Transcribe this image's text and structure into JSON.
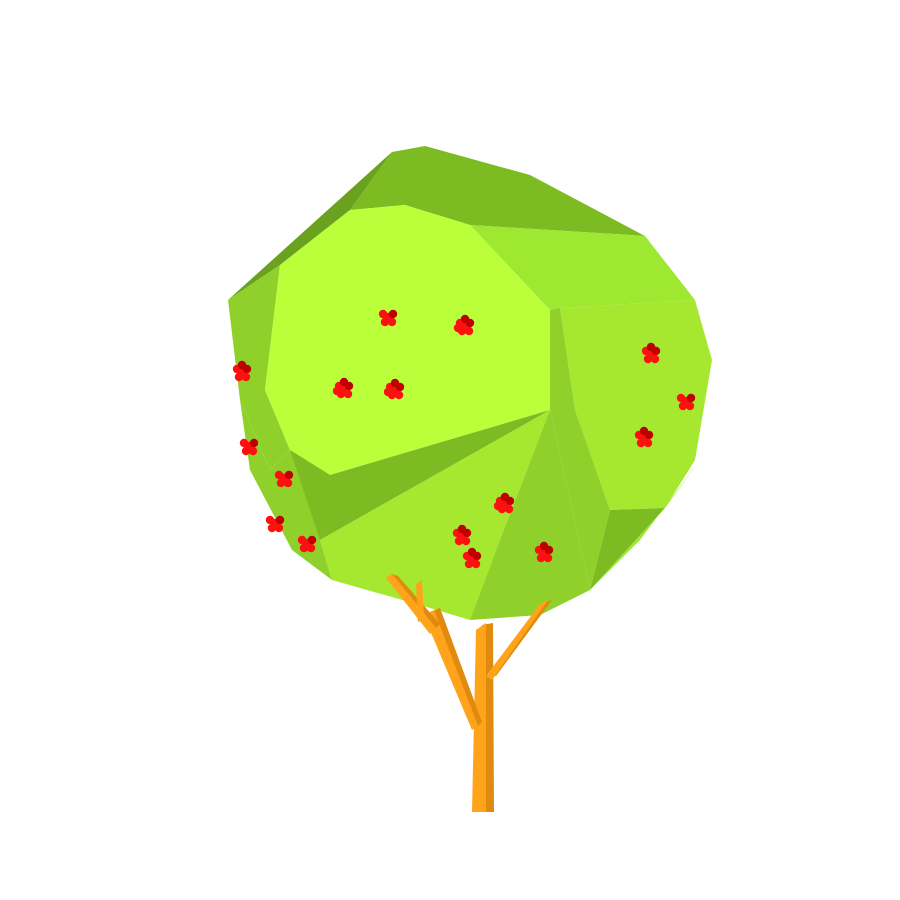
{
  "scene": {
    "subject": "tree-with-berries",
    "colors": {
      "background": "#ffffff",
      "leaf_dark": "#6aa11f",
      "leaf_mid_dark": "#7cbb22",
      "leaf_mid": "#8fd12a",
      "leaf_light": "#a6e830",
      "leaf_bright": "#bbff3a",
      "leaf_edge": "#9ee831",
      "trunk_light": "#ffa31a",
      "trunk_dark": "#e08a0e",
      "berry": "#ff1010",
      "berry_dark": "#c00000"
    }
  }
}
